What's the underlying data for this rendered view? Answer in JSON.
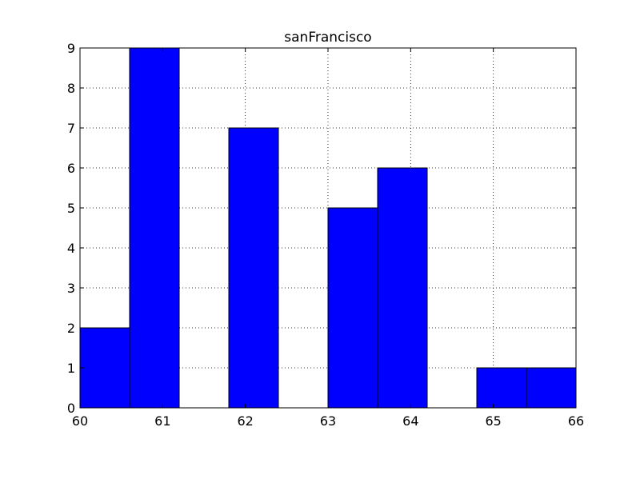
{
  "chart_data": {
    "type": "bar",
    "title": "sanFrancisco",
    "xlabel": "",
    "ylabel": "",
    "xlim": [
      60,
      66
    ],
    "ylim": [
      0,
      9
    ],
    "xticks": [
      60,
      61,
      62,
      63,
      64,
      65,
      66
    ],
    "yticks": [
      0,
      1,
      2,
      3,
      4,
      5,
      6,
      7,
      8,
      9
    ],
    "grid": true,
    "bins": [
      {
        "start": 60.0,
        "end": 60.6,
        "count": 2
      },
      {
        "start": 60.6,
        "end": 61.2,
        "count": 9
      },
      {
        "start": 61.2,
        "end": 61.8,
        "count": 0
      },
      {
        "start": 61.8,
        "end": 62.4,
        "count": 7
      },
      {
        "start": 62.4,
        "end": 63.0,
        "count": 0
      },
      {
        "start": 63.0,
        "end": 63.6,
        "count": 5
      },
      {
        "start": 63.6,
        "end": 64.2,
        "count": 6
      },
      {
        "start": 64.2,
        "end": 64.8,
        "count": 0
      },
      {
        "start": 64.8,
        "end": 65.4,
        "count": 1
      },
      {
        "start": 65.4,
        "end": 66.0,
        "count": 1
      }
    ],
    "colors": {
      "bar": "#0000ff",
      "edge": "#000000",
      "grid": "#000000"
    }
  }
}
